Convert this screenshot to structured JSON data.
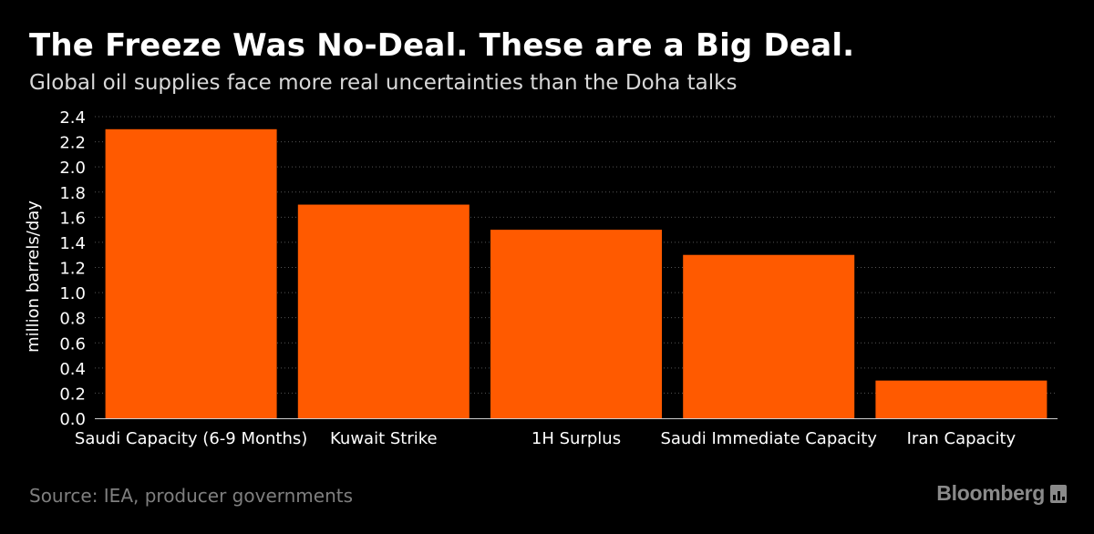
{
  "header": {
    "title": "The Freeze Was No-Deal. These are a Big Deal.",
    "subtitle": "Global oil supplies face more real uncertainties than the Doha talks"
  },
  "footer": {
    "source": "Source: IEA, producer governments",
    "brand": "Bloomberg",
    "brand_icon": "bloomberg-chart-icon"
  },
  "colors": {
    "background": "#000000",
    "bar": "#ff5a00",
    "grid": "#555555",
    "text": "#ffffff"
  },
  "chart_data": {
    "type": "bar",
    "title": "The Freeze Was No-Deal. These are a Big Deal.",
    "subtitle": "Global oil supplies face more real uncertainties than the Doha talks",
    "categories": [
      "Saudi Capacity (6-9 Months)",
      "Kuwait Strike",
      "1H Surplus",
      "Saudi Immediate Capacity",
      "Iran Capacity"
    ],
    "values": [
      2.3,
      1.7,
      1.5,
      1.3,
      0.3
    ],
    "xlabel": "",
    "ylabel": "million barrels/day",
    "ylim": [
      0,
      2.4
    ],
    "yticks": [
      "0.0",
      "0.2",
      "0.4",
      "0.6",
      "0.8",
      "1.0",
      "1.2",
      "1.4",
      "1.6",
      "1.8",
      "2.0",
      "2.2",
      "2.4"
    ],
    "grid": true,
    "legend": "none"
  }
}
